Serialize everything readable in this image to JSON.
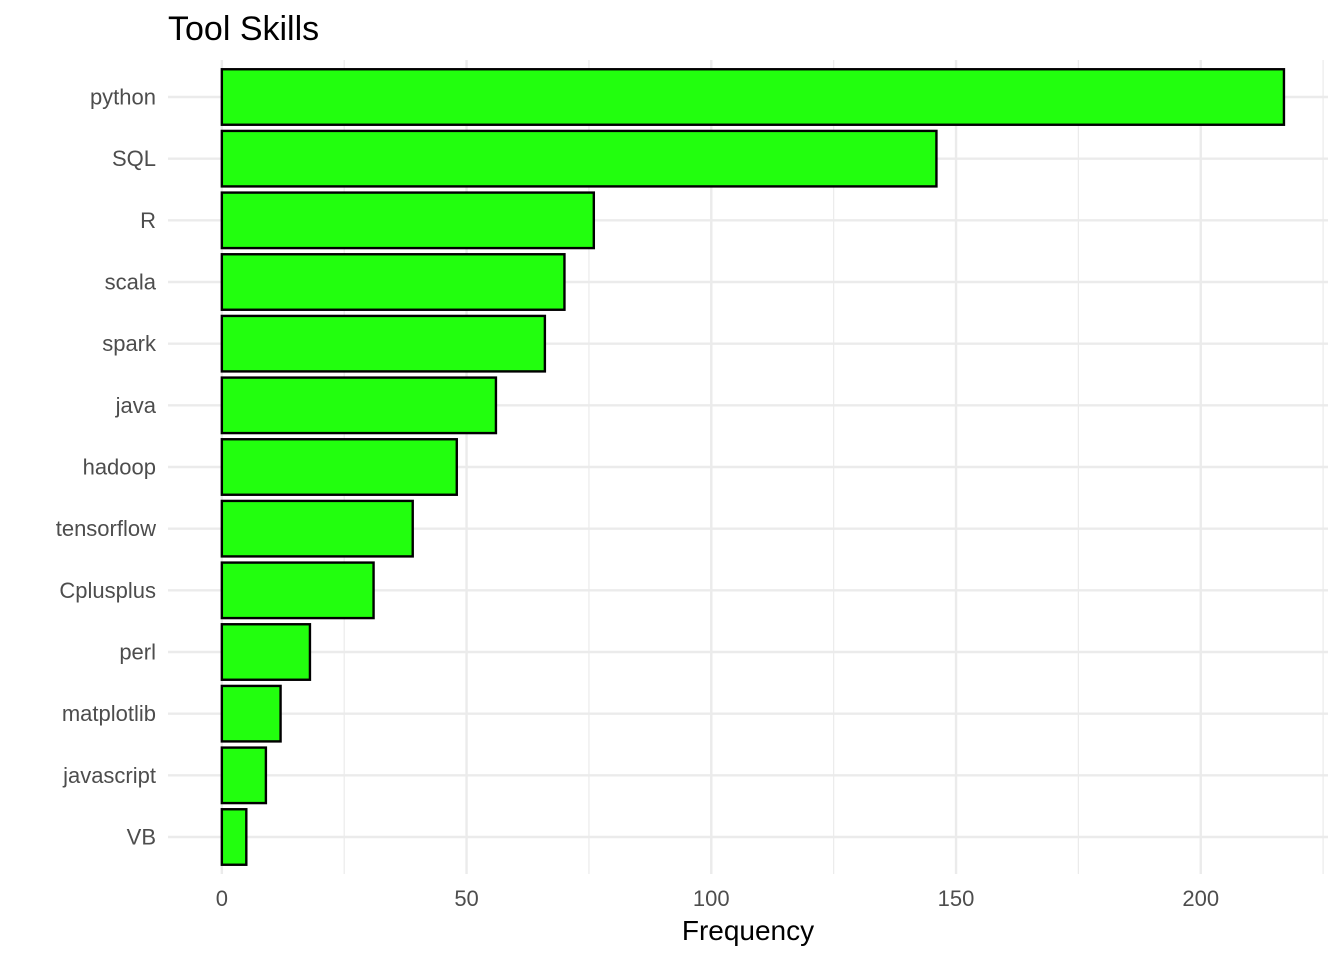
{
  "chart_data": {
    "type": "bar",
    "orientation": "horizontal",
    "title": "Tool Skills",
    "xlabel": "Frequency",
    "ylabel": "",
    "categories": [
      "python",
      "SQL",
      "R",
      "scala",
      "spark",
      "java",
      "hadoop",
      "tensorflow",
      "Cplusplus",
      "perl",
      "matplotlib",
      "javascript",
      "VB"
    ],
    "values": [
      217,
      146,
      76,
      70,
      66,
      56,
      48,
      39,
      31,
      18,
      12,
      9,
      5
    ],
    "xlim": [
      -11,
      226
    ],
    "xticks": [
      0,
      50,
      100,
      150,
      200
    ],
    "xtick_labels": [
      "0",
      "50",
      "100",
      "150",
      "200"
    ],
    "grid": true,
    "legend": "none",
    "colors": {
      "bar_fill": "#22ff0e",
      "bar_stroke": "#000000",
      "grid": "#ebebeb",
      "background": "#ffffff"
    }
  }
}
